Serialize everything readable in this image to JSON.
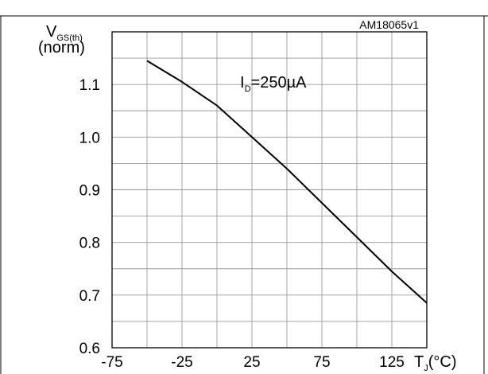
{
  "chart_data": {
    "type": "line",
    "figure_code": "AM18065v1",
    "y_label": {
      "main": "V",
      "sub": "GS(th)",
      "unit": "(norm)"
    },
    "x_label": {
      "main": "T",
      "sub": "J",
      "unit": "(°C)"
    },
    "annotation": {
      "main": "I",
      "sub": "D",
      "rest": "=250µA"
    },
    "xlim": [
      -75,
      150
    ],
    "ylim": [
      0.6,
      1.2
    ],
    "x_ticks": [
      -75,
      -25,
      25,
      75,
      125
    ],
    "x_tick_labels": [
      "-75",
      "-25",
      "25",
      "75",
      "125"
    ],
    "y_ticks": [
      0.6,
      0.7,
      0.8,
      0.9,
      1.0,
      1.1
    ],
    "y_tick_labels": [
      "0.6",
      "0.7",
      "0.8",
      "0.9",
      "1.0",
      "1.1"
    ],
    "x_grid_step": 25,
    "y_grid_step": 0.05,
    "grid": true,
    "series": [
      {
        "x": [
          -50,
          -25,
          0,
          25,
          50,
          75,
          100,
          125,
          150
        ],
        "y": [
          1.145,
          1.105,
          1.06,
          1.0,
          0.94,
          0.875,
          0.81,
          0.745,
          0.685
        ]
      }
    ]
  }
}
